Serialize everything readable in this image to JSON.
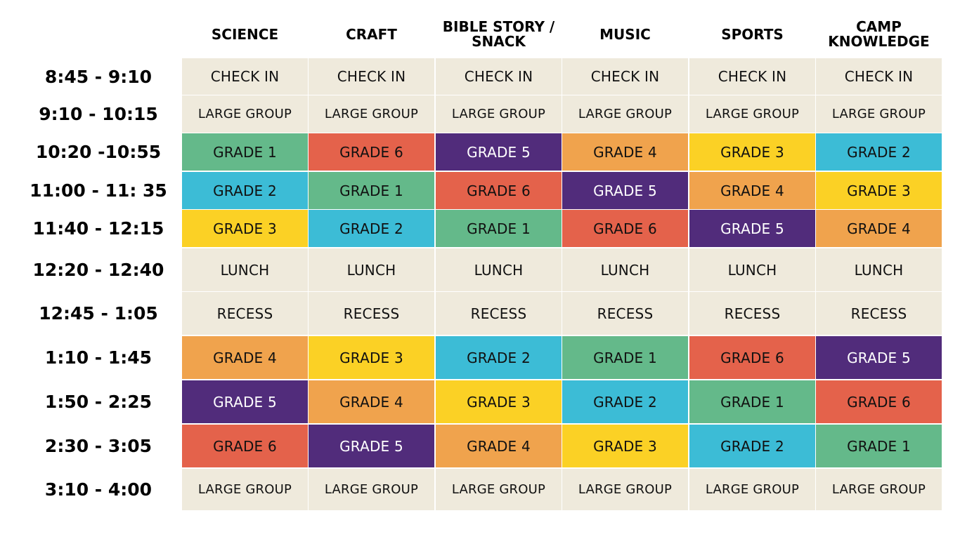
{
  "columns": [
    "SCIENCE",
    "CRAFT",
    "BIBLE STORY /\nSNACK",
    "MUSIC",
    "SPORTS",
    "CAMP\nKNOWLEDGE"
  ],
  "colors": {
    "neutral": "#efeadc",
    "GRADE 1": "#64b98a",
    "GRADE 2": "#3cbcd6",
    "GRADE 3": "#fbd125",
    "GRADE 4": "#f0a34d",
    "GRADE 5": "#512c7b",
    "GRADE 6": "#e4624b"
  },
  "rows": [
    {
      "time": "8:45 - 9:10",
      "cells": [
        "CHECK IN",
        "CHECK IN",
        "CHECK IN",
        "CHECK IN",
        "CHECK IN",
        "CHECK IN"
      ]
    },
    {
      "time": "9:10 - 10:15",
      "cells": [
        "LARGE GROUP",
        "LARGE GROUP",
        "LARGE GROUP",
        "LARGE GROUP",
        "LARGE GROUP",
        "LARGE GROUP"
      ]
    },
    {
      "time": "10:20 -10:55",
      "cells": [
        "GRADE 1",
        "GRADE 6",
        "GRADE 5",
        "GRADE 4",
        "GRADE 3",
        "GRADE 2"
      ]
    },
    {
      "time": "11:00 - 11: 35",
      "cells": [
        "GRADE 2",
        "GRADE 1",
        "GRADE 6",
        "GRADE 5",
        "GRADE 4",
        "GRADE 3"
      ]
    },
    {
      "time": "11:40 - 12:15",
      "cells": [
        "GRADE 3",
        "GRADE 2",
        "GRADE 1",
        "GRADE 6",
        "GRADE 5",
        "GRADE 4"
      ]
    },
    {
      "time": "12:20 - 12:40",
      "cells": [
        "LUNCH",
        "LUNCH",
        "LUNCH",
        "LUNCH",
        "LUNCH",
        "LUNCH"
      ]
    },
    {
      "time": "12:45 - 1:05",
      "cells": [
        "RECESS",
        "RECESS",
        "RECESS",
        "RECESS",
        "RECESS",
        "RECESS"
      ]
    },
    {
      "time": "1:10 - 1:45",
      "cells": [
        "GRADE 4",
        "GRADE 3",
        "GRADE 2",
        "GRADE 1",
        "GRADE 6",
        "GRADE 5"
      ]
    },
    {
      "time": "1:50 - 2:25",
      "cells": [
        "GRADE 5",
        "GRADE 4",
        "GRADE 3",
        "GRADE 2",
        "GRADE 1",
        "GRADE 6"
      ]
    },
    {
      "time": "2:30 - 3:05",
      "cells": [
        "GRADE 6",
        "GRADE 5",
        "GRADE 4",
        "GRADE 3",
        "GRADE 2",
        "GRADE 1"
      ]
    },
    {
      "time": "3:10 - 4:00",
      "cells": [
        "LARGE GROUP",
        "LARGE GROUP",
        "LARGE GROUP",
        "LARGE GROUP",
        "LARGE GROUP",
        "LARGE GROUP"
      ]
    }
  ]
}
